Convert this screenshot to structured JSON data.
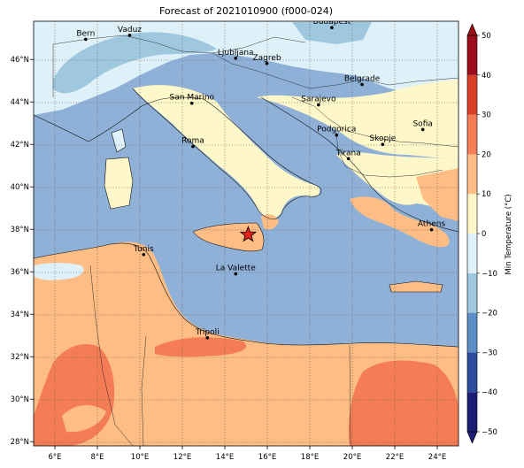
{
  "title": "Forecast of 2021010900 (f000-024)",
  "colorbar": {
    "label": "Min Temperature (°C)",
    "min": -50,
    "max": 50,
    "step": 10,
    "tick_labels": [
      "50",
      "40",
      "30",
      "20",
      "10",
      "0",
      "−10",
      "−20",
      "−30",
      "−40",
      "−50"
    ],
    "colors": [
      "#1a1f75",
      "#2c4da0",
      "#5b8ec4",
      "#9fc8df",
      "#dff1f8",
      "#fdf7c9",
      "#fdbd84",
      "#f57d55",
      "#d9402a",
      "#9c0e1c"
    ]
  },
  "axes": {
    "lon_ticks": [
      "6°E",
      "8°E",
      "10°E",
      "12°E",
      "14°E",
      "16°E",
      "18°E",
      "20°E",
      "22°E",
      "24°E"
    ],
    "lat_ticks": [
      "46°N",
      "44°N",
      "42°N",
      "40°N",
      "38°N",
      "36°N",
      "34°N",
      "32°N",
      "30°N",
      "28°N"
    ],
    "lon_range": [
      5.0,
      25.0
    ],
    "lat_range": [
      27.8,
      47.8
    ],
    "grid": true
  },
  "cities": [
    {
      "name": "Bern",
      "lon": 7.45,
      "lat": 46.95
    },
    {
      "name": "Vaduz",
      "lon": 9.52,
      "lat": 47.14
    },
    {
      "name": "Budapest",
      "lon": 19.04,
      "lat": 47.5
    },
    {
      "name": "Ljubljana",
      "lon": 14.51,
      "lat": 46.06
    },
    {
      "name": "Zagreb",
      "lon": 15.98,
      "lat": 45.81
    },
    {
      "name": "Belgrade",
      "lon": 20.46,
      "lat": 44.82
    },
    {
      "name": "San Marino",
      "lon": 12.45,
      "lat": 43.94
    },
    {
      "name": "Sarajevo",
      "lon": 18.41,
      "lat": 43.86
    },
    {
      "name": "Sofia",
      "lon": 23.32,
      "lat": 42.7
    },
    {
      "name": "Podgorica",
      "lon": 19.26,
      "lat": 42.44
    },
    {
      "name": "Skopje",
      "lon": 21.43,
      "lat": 42.0
    },
    {
      "name": "Roma",
      "lon": 12.5,
      "lat": 41.9
    },
    {
      "name": "Tirana",
      "lon": 19.82,
      "lat": 41.33
    },
    {
      "name": "Athens",
      "lon": 23.73,
      "lat": 37.98
    },
    {
      "name": "Tunis",
      "lon": 10.18,
      "lat": 36.81
    },
    {
      "name": "La Valette",
      "lon": 14.51,
      "lat": 35.9
    },
    {
      "name": "Tripoli",
      "lon": 13.18,
      "lat": 32.89
    }
  ],
  "marker": {
    "type": "star",
    "lon": 15.1,
    "lat": 37.75,
    "color": "#e0211c"
  }
}
